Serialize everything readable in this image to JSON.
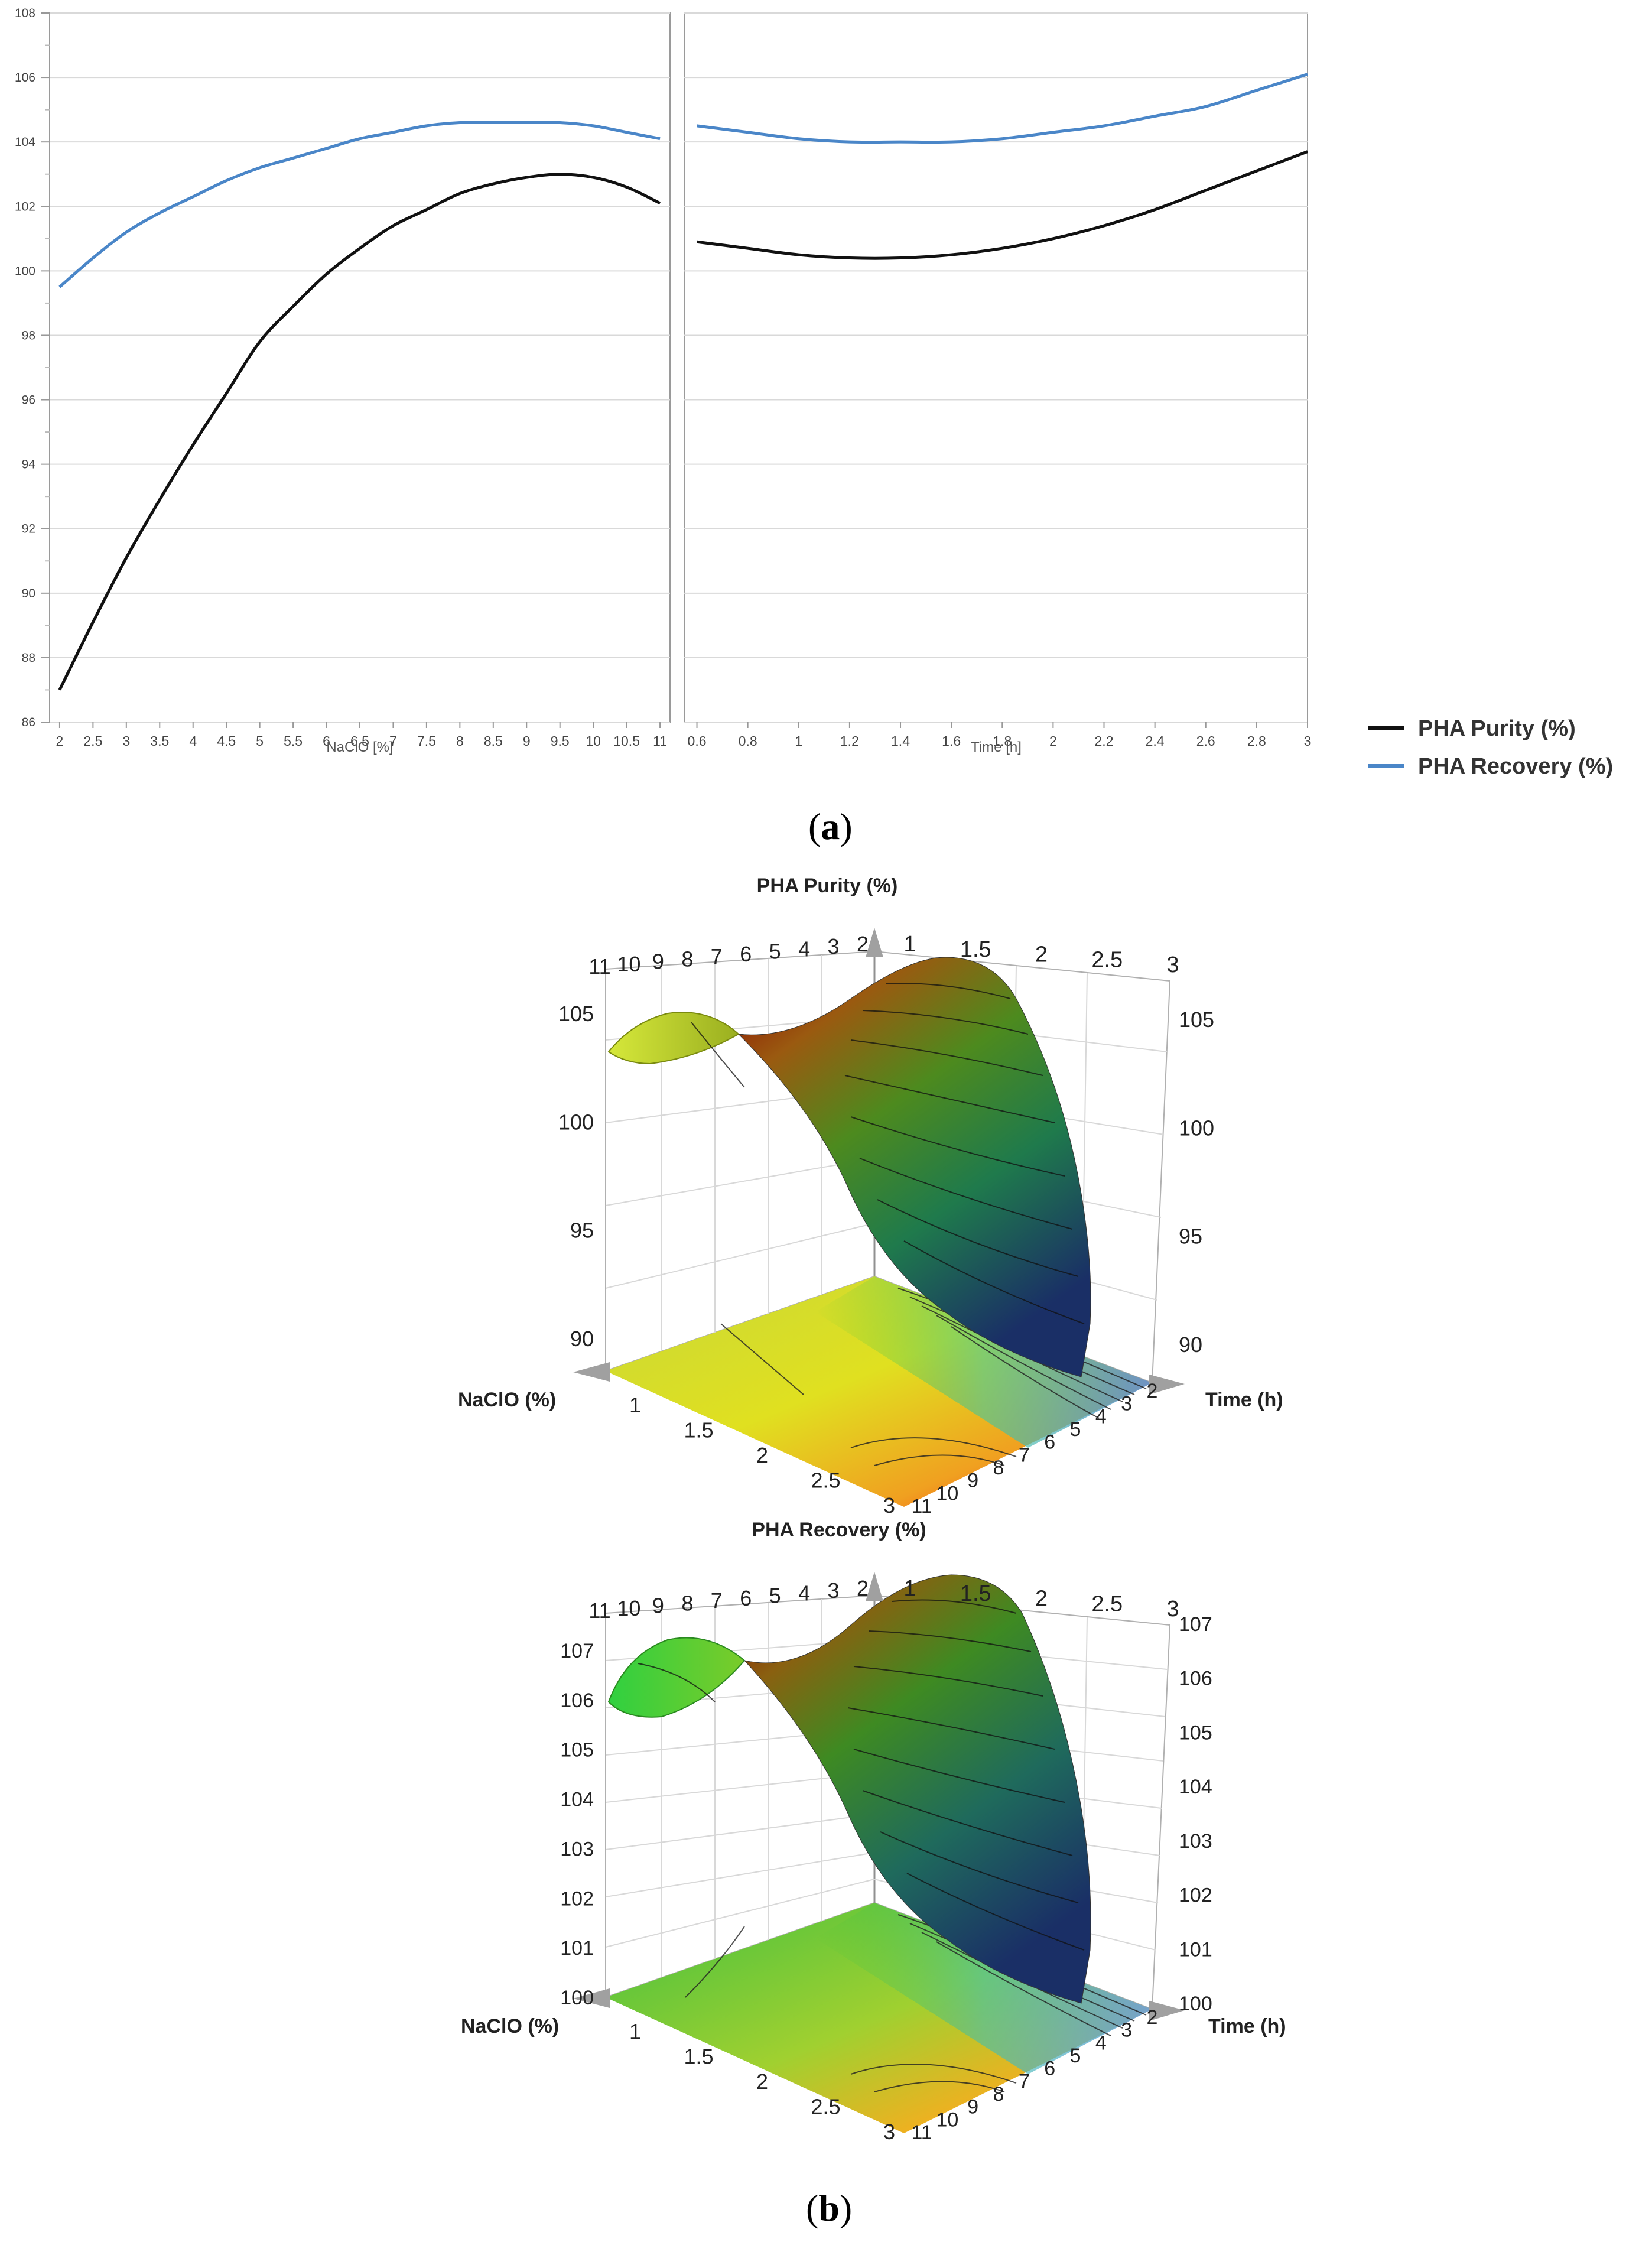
{
  "panel_labels": {
    "a": "a",
    "b": "b"
  },
  "legend": [
    {
      "label": "PHA Purity (%)",
      "color": "#111111"
    },
    {
      "label": "PHA Recovery (%)",
      "color": "#4a86c8"
    }
  ],
  "chart_data": [
    {
      "type": "line",
      "panel": "a-left",
      "xlabel": "NaClO [%]",
      "ylabel": "",
      "xlim": [
        1.85,
        11.15
      ],
      "ylim": [
        86,
        108
      ],
      "x_ticks": [
        "2",
        "2.5",
        "3",
        "3.5",
        "4",
        "4.5",
        "5",
        "5.5",
        "6",
        "6.5",
        "7",
        "7.5",
        "8",
        "8.5",
        "9",
        "9.5",
        "10",
        "10.5",
        "11"
      ],
      "y_ticks": [
        "86",
        "88",
        "90",
        "92",
        "94",
        "96",
        "98",
        "100",
        "102",
        "104",
        "106",
        "108"
      ],
      "grid": "horizontal",
      "x": [
        2,
        2.5,
        3,
        3.5,
        4,
        4.5,
        5,
        5.5,
        6,
        6.5,
        7,
        7.5,
        8,
        8.5,
        9,
        9.5,
        10,
        10.5,
        11
      ],
      "series": [
        {
          "name": "PHA Purity (%)",
          "color": "#111111",
          "values": [
            87.0,
            89.1,
            91.1,
            92.9,
            94.6,
            96.2,
            97.8,
            98.9,
            99.9,
            100.7,
            101.4,
            101.9,
            102.4,
            102.7,
            102.9,
            103.0,
            102.9,
            102.6,
            102.1
          ]
        },
        {
          "name": "PHA Recovery (%)",
          "color": "#4a86c8",
          "values": [
            99.5,
            100.4,
            101.2,
            101.8,
            102.3,
            102.8,
            103.2,
            103.5,
            103.8,
            104.1,
            104.3,
            104.5,
            104.6,
            104.6,
            104.6,
            104.6,
            104.5,
            104.3,
            104.1
          ]
        }
      ]
    },
    {
      "type": "line",
      "panel": "a-right",
      "xlabel": "Time [h]",
      "ylabel": "",
      "xlim": [
        0.55,
        3.0
      ],
      "ylim": [
        86,
        108
      ],
      "x_ticks": [
        "0.6",
        "0.8",
        "1",
        "1.2",
        "1.4",
        "1.6",
        "1.8",
        "2",
        "2.2",
        "2.4",
        "2.6",
        "2.8",
        "3"
      ],
      "grid": "horizontal",
      "x": [
        0.6,
        0.8,
        1.0,
        1.2,
        1.4,
        1.6,
        1.8,
        2.0,
        2.2,
        2.4,
        2.6,
        2.8,
        3.0
      ],
      "series": [
        {
          "name": "PHA Purity (%)",
          "color": "#111111",
          "values": [
            100.9,
            100.7,
            100.5,
            100.4,
            100.4,
            100.5,
            100.7,
            101.0,
            101.4,
            101.9,
            102.5,
            103.1,
            103.7
          ]
        },
        {
          "name": "PHA Recovery (%)",
          "color": "#4a86c8",
          "values": [
            104.5,
            104.3,
            104.1,
            104.0,
            104.0,
            104.0,
            104.1,
            104.3,
            104.5,
            104.8,
            105.1,
            105.6,
            106.1
          ]
        }
      ]
    },
    {
      "type": "surface3d",
      "panel": "b-top",
      "title": "PHA Purity (%)",
      "x_axis_label": "NaClO (%)",
      "y_axis_label": "Time (h)",
      "nacl_ticks": [
        "11",
        "10",
        "9",
        "8",
        "7",
        "6",
        "5",
        "4",
        "3",
        "2"
      ],
      "time_ticks_top": [
        "1",
        "1.5",
        "2",
        "2.5",
        "3"
      ],
      "time_ticks_floor": [
        "1",
        "1.5",
        "2",
        "2.5",
        "3"
      ],
      "nacl_ticks_floor": [
        "11",
        "10",
        "9",
        "8",
        "7",
        "6",
        "5",
        "4",
        "3",
        "2"
      ],
      "z_ticks": [
        "90",
        "95",
        "100",
        "105"
      ],
      "zlim": [
        88,
        107
      ]
    },
    {
      "type": "surface3d",
      "panel": "b-bottom",
      "title": "PHA Recovery (%)",
      "x_axis_label": "NaClO (%)",
      "y_axis_label": "Time (h)",
      "nacl_ticks": [
        "11",
        "10",
        "9",
        "8",
        "7",
        "6",
        "5",
        "4",
        "3",
        "2"
      ],
      "time_ticks_top": [
        "1",
        "1.5",
        "2",
        "2.5",
        "3"
      ],
      "time_ticks_floor": [
        "1",
        "1.5",
        "2",
        "2.5",
        "3"
      ],
      "nacl_ticks_floor": [
        "11",
        "10",
        "9",
        "8",
        "7",
        "6",
        "5",
        "4",
        "3",
        "2"
      ],
      "z_ticks": [
        "100",
        "101",
        "102",
        "103",
        "104",
        "105",
        "106",
        "107"
      ],
      "zlim": [
        99.5,
        107.5
      ]
    }
  ]
}
